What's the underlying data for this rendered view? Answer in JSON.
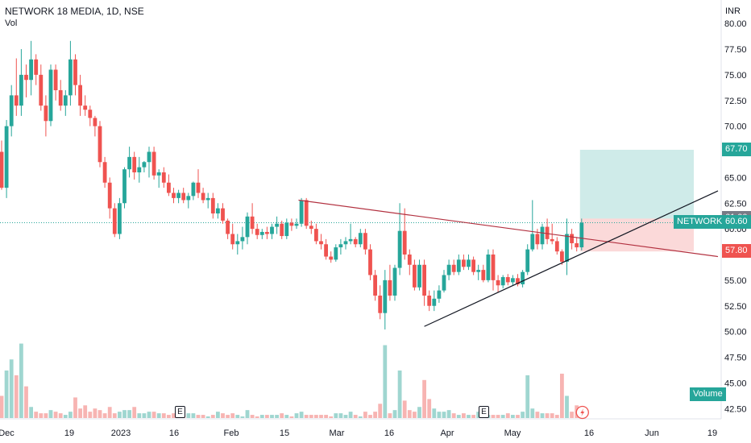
{
  "header": {
    "title": "NETWORK 18 MEDIA, 1D, NSE",
    "vol_label": "Vol",
    "currency": "INR"
  },
  "earnings_markers": [
    {
      "label": "E",
      "x_label": "Jan 14"
    },
    {
      "label": "E",
      "x_label": "Apr 20"
    }
  ],
  "flash_icon": "lightning-icon",
  "tags": {
    "target": {
      "value": "67.70",
      "color": "#26a69a"
    },
    "entry": {
      "value": "61.00",
      "color": "#787b86"
    },
    "symbol": {
      "name": "NETWORK18",
      "value": "60.60",
      "color": "#26a69a"
    },
    "stop": {
      "value": "57.80",
      "color": "#ef5350"
    },
    "volume": {
      "label": "Volume",
      "color": "#26a69a"
    }
  },
  "colors": {
    "up": "#26a69a",
    "down": "#ef5350",
    "up_vol": "#9fd6d0",
    "down_vol": "#f7b4b2",
    "trendline_upper": "#b2303f",
    "trendline_lower": "#131722"
  },
  "chart_data": {
    "type": "candlestick",
    "title": "NETWORK 18 MEDIA, 1D, NSE",
    "y_axis": {
      "ylim": [
        41.5,
        81.5
      ],
      "ticks": [
        "80.00",
        "77.50",
        "75.00",
        "72.50",
        "70.00",
        "65.00",
        "62.50",
        "60.00",
        "55.00",
        "52.50",
        "50.00",
        "47.50",
        "45.00",
        "42.50"
      ],
      "unit": "INR"
    },
    "x_axis": {
      "ticks": [
        "Dec",
        "19",
        "2023",
        "16",
        "Feb",
        "15",
        "Mar",
        "16",
        "Apr",
        "May",
        "16",
        "Jun",
        "19"
      ]
    },
    "series": [
      {
        "kind": "ohlc",
        "candles": [
          [
            67.5,
            68.6,
            63.8,
            64.0
          ],
          [
            64.0,
            70.6,
            63.0,
            70.0
          ],
          [
            70.0,
            74.0,
            69.0,
            73.0
          ],
          [
            73.0,
            76.6,
            71.0,
            72.0
          ],
          [
            72.0,
            77.5,
            71.0,
            75.0
          ],
          [
            75.0,
            76.0,
            72.8,
            74.5
          ],
          [
            74.5,
            78.3,
            73.0,
            76.5
          ],
          [
            76.5,
            77.0,
            74.0,
            75.0
          ],
          [
            75.0,
            76.0,
            71.5,
            72.0
          ],
          [
            72.0,
            73.0,
            69.0,
            70.5
          ],
          [
            70.5,
            76.0,
            70.0,
            75.5
          ],
          [
            75.5,
            76.0,
            72.5,
            73.5
          ],
          [
            73.5,
            74.5,
            71.5,
            72.0
          ],
          [
            72.0,
            73.5,
            71.0,
            73.0
          ],
          [
            73.0,
            78.3,
            72.0,
            76.5
          ],
          [
            76.5,
            77.0,
            73.0,
            74.0
          ],
          [
            74.0,
            75.0,
            71.0,
            72.0
          ],
          [
            72.0,
            73.0,
            71.0,
            71.6
          ],
          [
            71.6,
            72.0,
            70.0,
            70.8
          ],
          [
            70.8,
            71.0,
            69.0,
            70.0
          ],
          [
            70.0,
            70.5,
            66.0,
            66.5
          ],
          [
            66.5,
            67.0,
            64.0,
            64.5
          ],
          [
            64.5,
            65.0,
            61.0,
            62.0
          ],
          [
            62.0,
            62.5,
            59.2,
            59.5
          ],
          [
            59.5,
            63.0,
            59.0,
            62.5
          ],
          [
            62.5,
            66.0,
            62.0,
            65.8
          ],
          [
            65.8,
            68.0,
            65.0,
            67.0
          ],
          [
            67.0,
            67.5,
            64.8,
            65.5
          ],
          [
            65.5,
            67.0,
            64.5,
            66.0
          ],
          [
            66.0,
            66.6,
            65.5,
            66.5
          ],
          [
            66.5,
            68.0,
            65.0,
            67.5
          ],
          [
            67.5,
            68.0,
            64.8,
            65.2
          ],
          [
            65.2,
            65.8,
            64.0,
            65.5
          ],
          [
            65.5,
            66.0,
            64.0,
            64.5
          ],
          [
            64.5,
            65.3,
            63.2,
            63.5
          ],
          [
            63.5,
            64.0,
            62.5,
            63.0
          ],
          [
            63.0,
            63.8,
            62.5,
            63.5
          ],
          [
            63.5,
            64.0,
            62.5,
            62.8
          ],
          [
            62.8,
            63.5,
            62.0,
            63.2
          ],
          [
            63.2,
            64.6,
            62.8,
            64.5
          ],
          [
            64.5,
            65.8,
            63.0,
            63.5
          ],
          [
            63.5,
            64.0,
            62.5,
            62.8
          ],
          [
            62.8,
            63.5,
            62.0,
            63.0
          ],
          [
            63.0,
            63.5,
            61.0,
            61.5
          ],
          [
            61.5,
            62.5,
            61.0,
            62.0
          ],
          [
            62.0,
            62.5,
            60.5,
            60.8
          ],
          [
            60.8,
            61.0,
            59.0,
            59.5
          ],
          [
            59.5,
            60.5,
            58.0,
            58.5
          ],
          [
            58.5,
            59.5,
            57.5,
            58.8
          ],
          [
            58.8,
            60.2,
            58.0,
            59.2
          ],
          [
            59.2,
            61.6,
            58.5,
            61.2
          ],
          [
            61.2,
            62.5,
            59.5,
            60.0
          ],
          [
            60.0,
            60.5,
            59.0,
            59.4
          ],
          [
            59.4,
            60.0,
            59.0,
            59.7
          ],
          [
            59.7,
            60.2,
            59.0,
            59.5
          ],
          [
            59.5,
            60.5,
            59.0,
            60.2
          ],
          [
            60.2,
            61.2,
            59.5,
            60.5
          ],
          [
            60.5,
            60.8,
            59.0,
            59.3
          ],
          [
            59.3,
            61.0,
            59.0,
            60.6
          ],
          [
            60.6,
            61.0,
            59.8,
            60.3
          ],
          [
            60.3,
            61.0,
            60.0,
            60.5
          ],
          [
            60.5,
            63.0,
            60.2,
            62.8
          ],
          [
            62.8,
            63.0,
            60.0,
            60.3
          ],
          [
            60.3,
            60.8,
            59.5,
            60.0
          ],
          [
            60.0,
            60.5,
            58.5,
            58.8
          ],
          [
            58.8,
            59.5,
            58.0,
            58.5
          ],
          [
            58.5,
            59.0,
            57.0,
            57.3
          ],
          [
            57.3,
            57.8,
            56.7,
            57.0
          ],
          [
            57.0,
            58.5,
            56.8,
            58.2
          ],
          [
            58.2,
            59.0,
            57.5,
            58.5
          ],
          [
            58.5,
            59.2,
            58.0,
            58.8
          ],
          [
            58.8,
            60.5,
            58.5,
            59.0
          ],
          [
            59.0,
            59.2,
            58.2,
            58.5
          ],
          [
            58.5,
            60.0,
            58.2,
            59.6
          ],
          [
            59.6,
            60.0,
            57.5,
            58.0
          ],
          [
            58.0,
            58.5,
            55.0,
            55.5
          ],
          [
            55.5,
            56.0,
            53.0,
            53.5
          ],
          [
            53.5,
            54.5,
            51.2,
            51.8
          ],
          [
            51.8,
            56.0,
            50.2,
            55.0
          ],
          [
            55.0,
            56.5,
            53.0,
            53.5
          ],
          [
            53.5,
            56.5,
            53.0,
            56.2
          ],
          [
            56.2,
            62.5,
            55.5,
            59.8
          ],
          [
            59.8,
            62.0,
            57.0,
            57.5
          ],
          [
            57.5,
            58.0,
            55.5,
            56.5
          ],
          [
            56.5,
            57.0,
            54.0,
            54.3
          ],
          [
            54.3,
            57.0,
            54.0,
            56.5
          ],
          [
            56.5,
            57.0,
            52.5,
            53.5
          ],
          [
            53.5,
            54.0,
            52.0,
            52.5
          ],
          [
            52.5,
            54.0,
            52.0,
            53.2
          ],
          [
            53.2,
            54.5,
            52.8,
            54.0
          ],
          [
            54.0,
            56.0,
            53.8,
            55.5
          ],
          [
            55.5,
            57.0,
            55.0,
            56.5
          ],
          [
            56.5,
            57.0,
            55.5,
            55.8
          ],
          [
            55.8,
            57.5,
            55.5,
            57.0
          ],
          [
            57.0,
            57.5,
            56.0,
            56.3
          ],
          [
            56.3,
            57.5,
            56.0,
            57.0
          ],
          [
            57.0,
            57.3,
            55.5,
            55.8
          ],
          [
            55.8,
            56.5,
            55.0,
            56.0
          ],
          [
            56.0,
            56.5,
            54.8,
            55.0
          ],
          [
            55.0,
            58.0,
            54.8,
            57.5
          ],
          [
            57.5,
            58.0,
            54.0,
            55.0
          ],
          [
            55.0,
            55.5,
            53.8,
            54.5
          ],
          [
            54.5,
            55.5,
            54.2,
            55.3
          ],
          [
            55.3,
            55.6,
            54.5,
            54.8
          ],
          [
            54.8,
            55.5,
            54.5,
            55.2
          ],
          [
            55.2,
            55.6,
            54.4,
            54.6
          ],
          [
            54.6,
            56.0,
            54.3,
            55.8
          ],
          [
            55.8,
            58.5,
            55.5,
            58.0
          ],
          [
            58.0,
            62.8,
            57.8,
            59.5
          ],
          [
            59.5,
            60.0,
            58.0,
            58.5
          ],
          [
            58.5,
            60.5,
            58.0,
            60.2
          ],
          [
            60.2,
            61.0,
            58.5,
            59.0
          ],
          [
            59.0,
            60.5,
            58.5,
            58.8
          ],
          [
            58.8,
            59.2,
            57.5,
            57.8
          ],
          [
            57.8,
            58.0,
            56.5,
            56.8
          ],
          [
            56.8,
            61.0,
            55.5,
            59.5
          ],
          [
            59.5,
            60.0,
            58.0,
            58.6
          ],
          [
            58.6,
            59.2,
            57.8,
            58.2
          ],
          [
            58.2,
            61.0,
            57.9,
            60.6
          ]
        ],
        "volume": [
          14,
          30,
          37,
          27,
          47,
          20,
          7,
          4,
          3,
          3,
          5,
          4,
          3,
          2,
          4,
          13,
          6,
          8,
          4,
          6,
          5,
          3,
          7,
          3,
          4,
          5,
          5,
          7,
          3,
          3,
          4,
          4,
          3,
          3,
          2,
          3,
          4,
          2,
          3,
          3,
          2,
          2,
          1,
          2,
          4,
          3,
          2,
          3,
          2,
          1,
          5,
          2,
          1,
          2,
          2,
          2,
          2,
          3,
          2,
          1,
          3,
          4,
          2,
          2,
          2,
          2,
          2,
          1,
          3,
          3,
          2,
          4,
          2,
          1,
          4,
          2,
          4,
          9,
          46,
          3,
          5,
          30,
          11,
          5,
          4,
          7,
          24,
          12,
          6,
          4,
          4,
          5,
          3,
          2,
          3,
          2,
          2,
          4,
          3,
          2,
          2,
          2,
          2,
          3,
          2,
          2,
          4,
          27,
          6,
          4,
          3,
          3,
          3,
          2,
          28,
          14,
          4,
          8
        ]
      }
    ],
    "trendlines": [
      {
        "name": "upper",
        "from": [
          62.8,
          62.8
        ],
        "to": [
          57.3,
          57.3
        ]
      },
      {
        "name": "lower",
        "from": [
          50.5,
          50.5
        ],
        "to": [
          63.7,
          63.7
        ]
      }
    ],
    "position": {
      "target": 67.7,
      "entry": 61.0,
      "stop": 57.8
    },
    "last_price": 60.6,
    "grid": false,
    "legend": "bottom-right"
  }
}
